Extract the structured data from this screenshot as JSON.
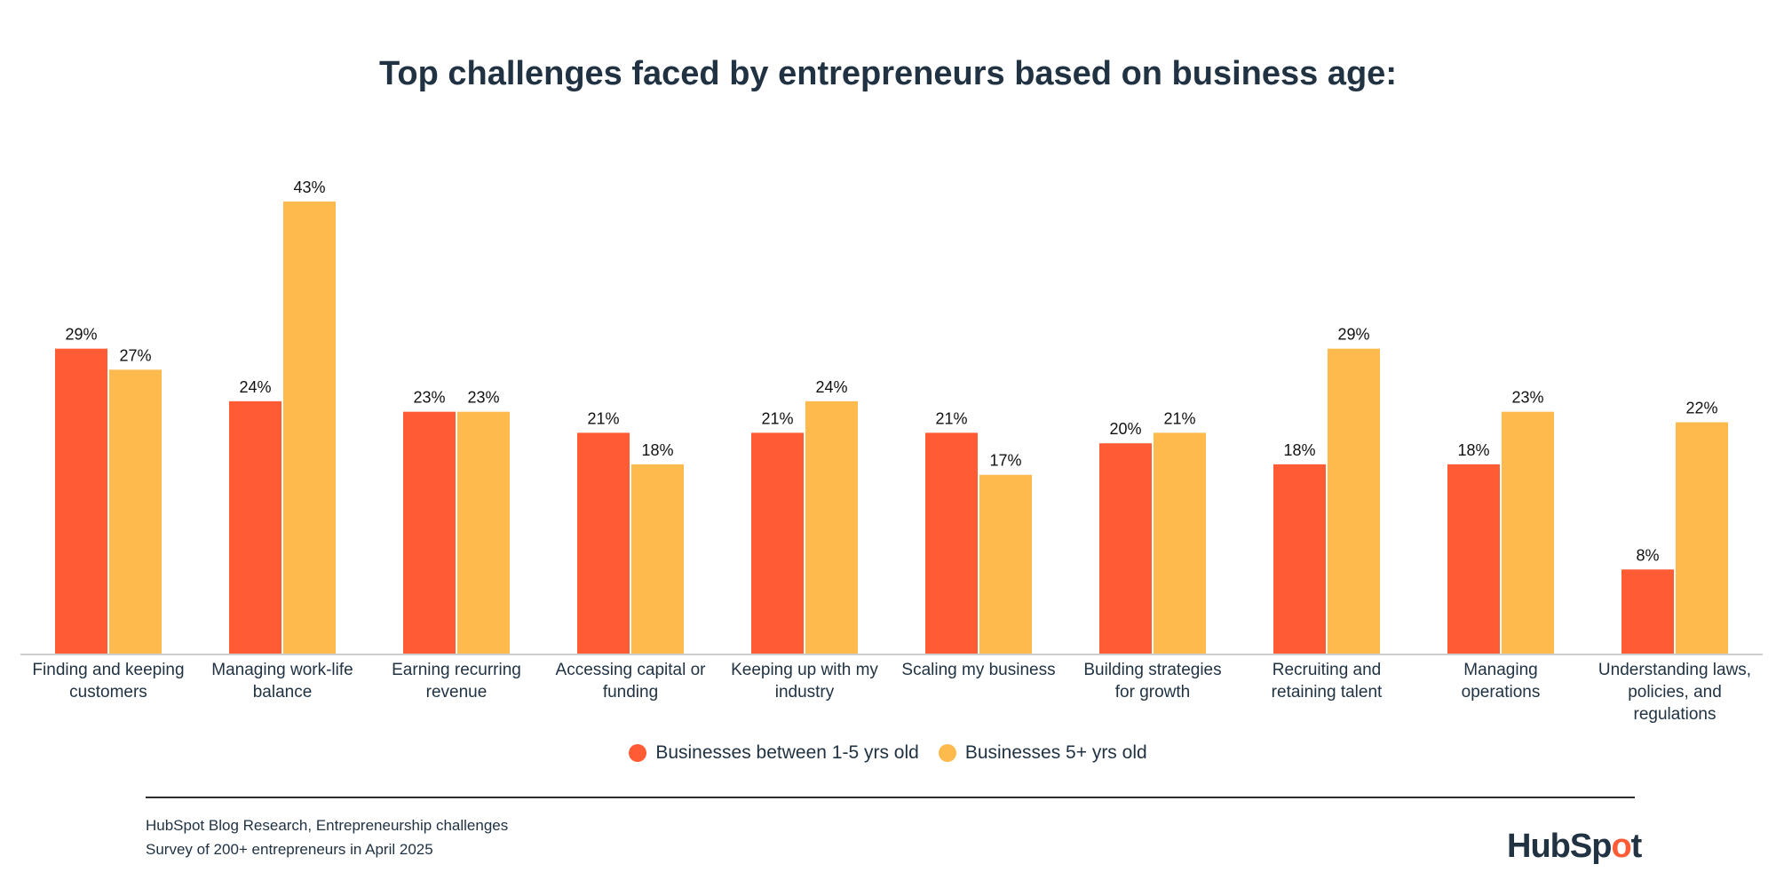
{
  "chart_data": {
    "type": "bar",
    "title": "Top challenges faced by entrepreneurs based on business age:",
    "categories": [
      [
        "Finding and keeping",
        "customers"
      ],
      [
        "Managing work-life",
        "balance"
      ],
      [
        "Earning recurring",
        "revenue"
      ],
      [
        "Accessing capital or",
        "funding"
      ],
      [
        "Keeping up with my",
        "industry"
      ],
      [
        "Scaling my business"
      ],
      [
        "Building strategies",
        "for growth"
      ],
      [
        "Recruiting and",
        "retaining talent"
      ],
      [
        "Managing",
        "operations"
      ],
      [
        "Understanding laws,",
        "policies, and",
        "regulations"
      ]
    ],
    "series": [
      {
        "name": "Businesses between 1-5 yrs old",
        "color": "#FF5C35",
        "values": [
          29,
          24,
          23,
          21,
          21,
          21,
          20,
          18,
          18,
          8
        ]
      },
      {
        "name": "Businesses 5+ yrs old",
        "color": "#FFBA4E",
        "values": [
          27,
          43,
          23,
          18,
          24,
          17,
          21,
          29,
          23,
          22
        ]
      }
    ],
    "value_suffix": "%",
    "ylim": [
      0,
      45
    ],
    "grid": false,
    "legend_placement": "bottom"
  },
  "footer": {
    "source_line1": "HubSpot Blog Research, Entrepreneurship challenges",
    "source_line2": "Survey of 200+ entrepreneurs in April 2025",
    "logo_text": "HubSpot"
  }
}
